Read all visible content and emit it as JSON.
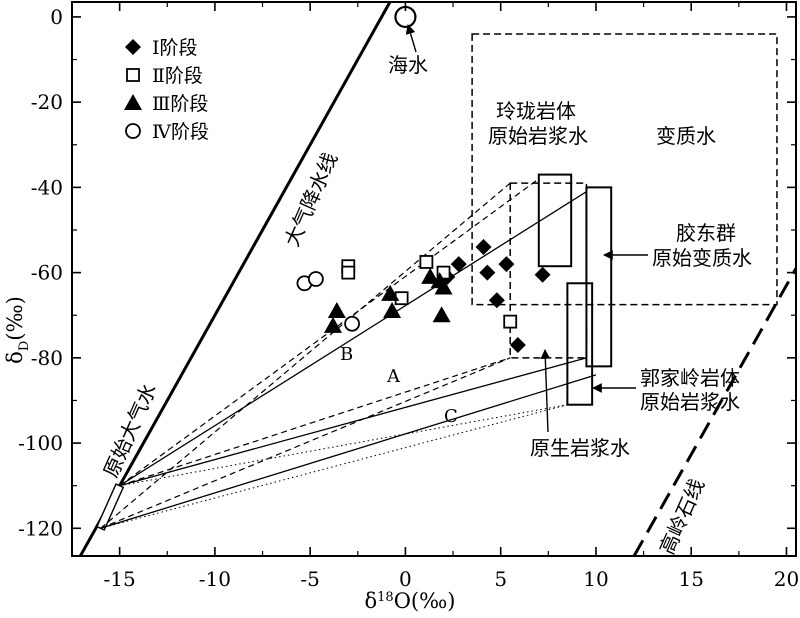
{
  "chart_data": {
    "type": "scatter",
    "xlabel": "δ18O(‰)",
    "ylabel": "δD(‰)",
    "xlim": [
      -17.5,
      20.5
    ],
    "ylim": [
      -126.5,
      3.5
    ],
    "x_ticks": [
      -15,
      -10,
      -5,
      0,
      5,
      10,
      15,
      20
    ],
    "y_ticks": [
      0,
      -20,
      -40,
      -60,
      -80,
      -100,
      -120
    ],
    "grid": false,
    "legend_position": "top-left",
    "legend": [
      {
        "marker": "diamond",
        "label": "Ⅰ阶段"
      },
      {
        "marker": "square",
        "label": "Ⅱ阶段"
      },
      {
        "marker": "triangle",
        "label": "Ⅲ阶段"
      },
      {
        "marker": "circle",
        "label": "Ⅳ阶段"
      }
    ],
    "series": [
      {
        "label": "Ⅰ阶段",
        "marker": "diamond",
        "points": [
          [
            2.2,
            -61
          ],
          [
            2.8,
            -58
          ],
          [
            4.1,
            -54
          ],
          [
            4.3,
            -60
          ],
          [
            4.8,
            -66.5
          ],
          [
            5.3,
            -58
          ],
          [
            5.9,
            -77
          ],
          [
            7.2,
            -60.5
          ]
        ]
      },
      {
        "label": "Ⅱ阶段",
        "marker": "square",
        "points": [
          [
            -3,
            -58.5
          ],
          [
            -3,
            -60
          ],
          [
            -0.2,
            -66
          ],
          [
            1.1,
            -57.5
          ],
          [
            2,
            -60
          ],
          [
            5.5,
            -71.5
          ]
        ]
      },
      {
        "label": "Ⅲ阶段",
        "marker": "triangle",
        "points": [
          [
            -3.6,
            -69
          ],
          [
            -3.8,
            -72.5
          ],
          [
            -0.8,
            -65
          ],
          [
            -0.7,
            -69
          ],
          [
            1.3,
            -61
          ],
          [
            2,
            -63.5
          ],
          [
            1.8,
            -62
          ],
          [
            1.9,
            -70
          ]
        ]
      },
      {
        "label": "Ⅳ阶段",
        "marker": "circle",
        "points": [
          [
            -5.3,
            -62.5
          ],
          [
            -4.7,
            -61.5
          ],
          [
            -2.8,
            -72
          ]
        ]
      }
    ],
    "meteoric_water_line": {
      "label": "大气降水线",
      "slope": 8,
      "intercept": 10
    },
    "kaolinite_line": {
      "label": "高岭石线",
      "from": [
        12,
        -126.5
      ],
      "to": [
        20.5,
        -59
      ]
    },
    "seawater": {
      "label": "海水",
      "x": 0,
      "y": 0
    },
    "primitive_meteoric_water": {
      "label": "原始大气水",
      "from": [
        -16,
        -120
      ],
      "to": [
        -15,
        -110
      ]
    },
    "fields": [
      {
        "label": "变质水",
        "style": "dashed",
        "x": [
          3.5,
          19.5
        ],
        "y": [
          -67.5,
          -4
        ]
      },
      {
        "label": "原生岩浆水",
        "style": "dashed",
        "x": [
          5.5,
          9.5
        ],
        "y": [
          -80,
          -39
        ]
      },
      {
        "label": "玲珑岩体 原始岩浆水",
        "style": "solid",
        "x": [
          7,
          8.7
        ],
        "y": [
          -58.5,
          -37
        ]
      },
      {
        "label": "胶东群 原始变质水",
        "style": "solid",
        "x": [
          9.5,
          10.8
        ],
        "y": [
          -82,
          -40
        ]
      },
      {
        "label": "郭家岭岩体 原始岩浆水",
        "style": "solid",
        "x": [
          8.5,
          9.8
        ],
        "y": [
          -91,
          -62.5
        ]
      }
    ],
    "mixing_lines": [
      {
        "label": "A",
        "from": [
          -15,
          -110
        ],
        "to": [
          9.5,
          -80
        ]
      },
      {
        "label": "B",
        "from": [
          -15,
          -110
        ],
        "to": [
          9.5,
          -41
        ]
      },
      {
        "label": "C",
        "from": [
          -16,
          -120
        ],
        "to": [
          10,
          -84
        ]
      }
    ],
    "labels": {
      "line_a": "A",
      "line_b": "B",
      "line_c": "C",
      "seawater": "海水",
      "meteoric_line": "大气降水线",
      "kaolinite": "高岭石线",
      "primitive_meteoric": "原始大气水",
      "metamorphic_water": "变质水",
      "primary_magmatic": "原生岩浆水",
      "linglong_1": "玲珑岩体",
      "linglong_2": "原始岩浆水",
      "jiaodong_1": "胶东群",
      "jiaodong_2": "原始变质水",
      "guojialing_1": "郭家岭岩体",
      "guojialing_2": "原始岩浆水"
    }
  }
}
